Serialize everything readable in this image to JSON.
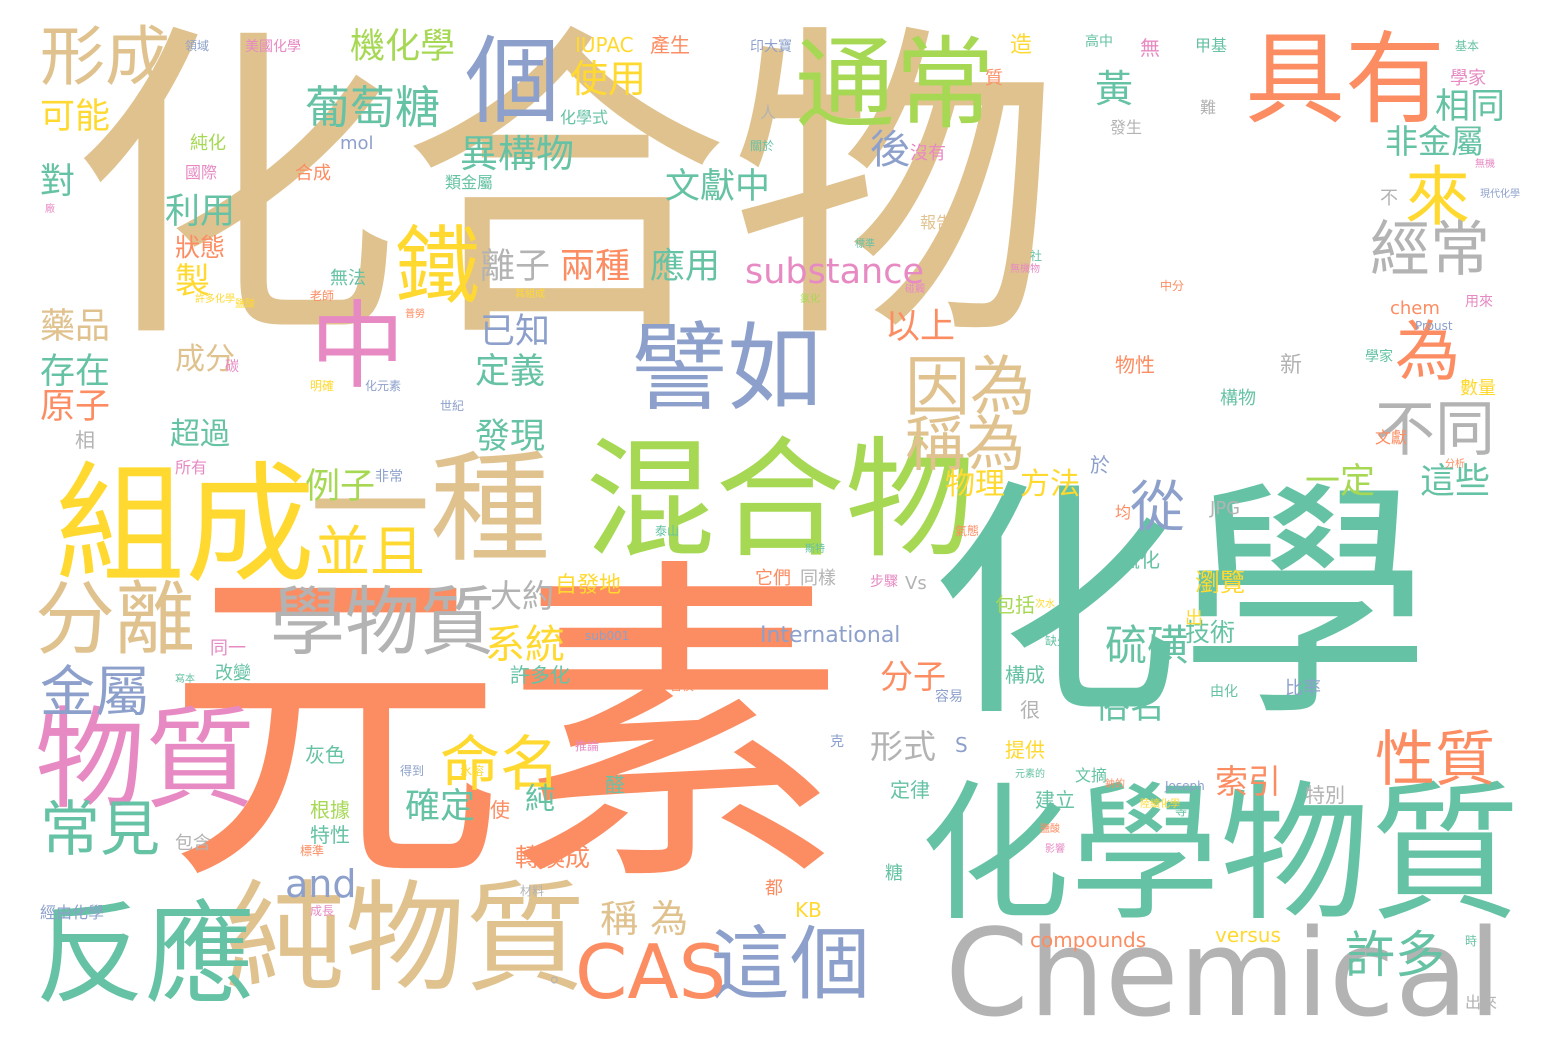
{
  "palette": {
    "tan": "#e0c28f",
    "teal": "#66c2a5",
    "orange": "#fc8d62",
    "blue": "#8da0cb",
    "pink": "#e78ac3",
    "green": "#a6d854",
    "yellow": "#ffd92f",
    "gray": "#b3b3b3"
  },
  "words": [
    {
      "text": "化合物",
      "color": "tan"
    },
    {
      "text": "元素",
      "color": "orange"
    },
    {
      "text": "化學",
      "color": "teal"
    },
    {
      "text": "化學物質",
      "color": "teal"
    },
    {
      "text": "混合物",
      "color": "green"
    },
    {
      "text": "組成",
      "color": "yellow"
    },
    {
      "text": "一種",
      "color": "tan"
    },
    {
      "text": "純物質",
      "color": "tan"
    },
    {
      "text": "Chemical",
      "color": "gray"
    },
    {
      "text": "反應",
      "color": "teal"
    },
    {
      "text": "物質",
      "color": "pink"
    },
    {
      "text": "具有",
      "color": "orange"
    },
    {
      "text": "通常",
      "color": "green"
    },
    {
      "text": "譬如",
      "color": "blue"
    },
    {
      "text": "個",
      "color": "blue"
    },
    {
      "text": "中",
      "color": "pink"
    },
    {
      "text": "鐵",
      "color": "yellow"
    },
    {
      "text": "學物質",
      "color": "gray"
    },
    {
      "text": "這個",
      "color": "blue"
    },
    {
      "text": "分離",
      "color": "tan"
    },
    {
      "text": "CAS",
      "color": "orange"
    },
    {
      "text": "形成",
      "color": "tan"
    },
    {
      "text": "因為",
      "color": "tan"
    },
    {
      "text": "經常",
      "color": "gray"
    },
    {
      "text": "不同",
      "color": "gray"
    },
    {
      "text": "常見",
      "color": "teal"
    },
    {
      "text": "命名",
      "color": "yellow"
    },
    {
      "text": "性質",
      "color": "orange"
    },
    {
      "text": "金屬",
      "color": "blue"
    },
    {
      "text": "並且",
      "color": "yellow"
    },
    {
      "text": "稱為",
      "color": "tan"
    },
    {
      "text": "來",
      "color": "yellow"
    },
    {
      "text": "為",
      "color": "orange"
    },
    {
      "text": "從",
      "color": "blue"
    },
    {
      "text": "許多",
      "color": "teal"
    },
    {
      "text": "葡萄糖",
      "color": "teal"
    },
    {
      "text": "機化學",
      "color": "green"
    },
    {
      "text": "substance",
      "color": "pink"
    },
    {
      "text": "系統",
      "color": "yellow"
    },
    {
      "text": "硫磺",
      "color": "teal"
    },
    {
      "text": "使用",
      "color": "yellow"
    },
    {
      "text": "異構物",
      "color": "teal"
    },
    {
      "text": "文獻中",
      "color": "teal"
    },
    {
      "text": "兩種",
      "color": "orange"
    },
    {
      "text": "應用",
      "color": "teal"
    },
    {
      "text": "離子",
      "color": "gray"
    },
    {
      "text": "利用",
      "color": "teal"
    },
    {
      "text": "已知",
      "color": "blue"
    },
    {
      "text": "定義",
      "color": "teal"
    },
    {
      "text": "以上",
      "color": "orange"
    },
    {
      "text": "後",
      "color": "blue"
    },
    {
      "text": "存在",
      "color": "teal"
    },
    {
      "text": "原子",
      "color": "orange"
    },
    {
      "text": "藥品",
      "color": "tan"
    },
    {
      "text": "可能",
      "color": "yellow"
    },
    {
      "text": "對",
      "color": "teal"
    },
    {
      "text": "製",
      "color": "yellow"
    },
    {
      "text": "狀態",
      "color": "orange"
    },
    {
      "text": "黃",
      "color": "teal"
    },
    {
      "text": "非金屬",
      "color": "teal"
    },
    {
      "text": "相同",
      "color": "teal"
    },
    {
      "text": "這些",
      "color": "teal"
    },
    {
      "text": "一定",
      "color": "green"
    },
    {
      "text": "索引",
      "color": "orange"
    },
    {
      "text": "形式",
      "color": "gray"
    },
    {
      "text": "分子",
      "color": "orange"
    },
    {
      "text": "and",
      "color": "blue"
    },
    {
      "text": "稱 為",
      "color": "tan"
    },
    {
      "text": "例子",
      "color": "green"
    },
    {
      "text": "發現",
      "color": "teal"
    },
    {
      "text": "超過",
      "color": "teal"
    },
    {
      "text": "成分",
      "color": "tan"
    },
    {
      "text": "俗名",
      "color": "teal"
    },
    {
      "text": "大約",
      "color": "gray"
    },
    {
      "text": "物理",
      "color": "yellow"
    },
    {
      "text": "方法",
      "color": "yellow"
    },
    {
      "text": "技術",
      "color": "teal"
    },
    {
      "text": "瀏覽",
      "color": "yellow"
    },
    {
      "text": "確定",
      "color": "teal"
    },
    {
      "text": "轉換成",
      "color": "orange"
    },
    {
      "text": "純",
      "color": "teal"
    },
    {
      "text": "International",
      "color": "blue"
    },
    {
      "text": "compounds",
      "color": "orange"
    },
    {
      "text": "versus",
      "color": "yellow"
    },
    {
      "text": "IUPAC",
      "color": "yellow"
    },
    {
      "text": "chem",
      "color": "orange"
    },
    {
      "text": "JPG",
      "color": "gray"
    },
    {
      "text": "mol",
      "color": "blue"
    },
    {
      "text": "Proust",
      "color": "blue"
    },
    {
      "text": "Joseph",
      "color": "blue"
    },
    {
      "text": "KB",
      "color": "yellow"
    },
    {
      "text": "sub001",
      "color": "blue"
    },
    {
      "text": "Vs",
      "color": "gray"
    },
    {
      "text": "S",
      "color": "blue"
    },
    {
      "text": "美國化學",
      "color": "pink"
    },
    {
      "text": "領域",
      "color": "blue"
    },
    {
      "text": "產生",
      "color": "orange"
    },
    {
      "text": "印大寶",
      "color": "blue"
    },
    {
      "text": "造",
      "color": "yellow"
    },
    {
      "text": "高中",
      "color": "teal"
    },
    {
      "text": "無",
      "color": "pink"
    },
    {
      "text": "甲基",
      "color": "teal"
    },
    {
      "text": "基本",
      "color": "teal"
    },
    {
      "text": "學家",
      "color": "pink"
    },
    {
      "text": "質",
      "color": "orange"
    },
    {
      "text": "人",
      "color": "gray"
    },
    {
      "text": "化學式",
      "color": "teal"
    },
    {
      "text": "純化",
      "color": "green"
    },
    {
      "text": "國際",
      "color": "pink"
    },
    {
      "text": "合成",
      "color": "orange"
    },
    {
      "text": "類金屬",
      "color": "teal"
    },
    {
      "text": "沒有",
      "color": "pink"
    },
    {
      "text": "難",
      "color": "gray"
    },
    {
      "text": "發生",
      "color": "gray"
    },
    {
      "text": "數量",
      "color": "yellow"
    },
    {
      "text": "新",
      "color": "gray"
    },
    {
      "text": "物性",
      "color": "orange"
    },
    {
      "text": "構物",
      "color": "teal"
    },
    {
      "text": "文獻",
      "color": "orange"
    },
    {
      "text": "學家",
      "color": "teal"
    },
    {
      "text": "報告",
      "color": "tan"
    },
    {
      "text": "色",
      "color": "tan"
    },
    {
      "text": "無法",
      "color": "teal"
    },
    {
      "text": "相",
      "color": "gray"
    },
    {
      "text": "所有",
      "color": "pink"
    },
    {
      "text": "非常",
      "color": "blue"
    },
    {
      "text": "碳",
      "color": "pink"
    },
    {
      "text": "明確",
      "color": "yellow"
    },
    {
      "text": "化元素",
      "color": "blue"
    },
    {
      "text": "世紀",
      "color": "blue"
    },
    {
      "text": "於",
      "color": "blue"
    },
    {
      "text": "均",
      "color": "orange"
    },
    {
      "text": "硫化",
      "color": "teal"
    },
    {
      "text": "包括",
      "color": "green"
    },
    {
      "text": "自發地",
      "color": "yellow"
    },
    {
      "text": "它們",
      "color": "orange"
    },
    {
      "text": "同樣",
      "color": "gray"
    },
    {
      "text": "步驟",
      "color": "pink"
    },
    {
      "text": "同一",
      "color": "pink"
    },
    {
      "text": "改變",
      "color": "teal"
    },
    {
      "text": "許多化",
      "color": "teal"
    },
    {
      "text": "很",
      "color": "gray"
    },
    {
      "text": "構成",
      "color": "teal"
    },
    {
      "text": "由化",
      "color": "teal"
    },
    {
      "text": "比率",
      "color": "blue"
    },
    {
      "text": "灰色",
      "color": "teal"
    },
    {
      "text": "根據",
      "color": "green"
    },
    {
      "text": "特性",
      "color": "teal"
    },
    {
      "text": "包含",
      "color": "gray"
    },
    {
      "text": "克",
      "color": "blue"
    },
    {
      "text": "定律",
      "color": "teal"
    },
    {
      "text": "提供",
      "color": "yellow"
    },
    {
      "text": "建立",
      "color": "teal"
    },
    {
      "text": "特別",
      "color": "gray"
    },
    {
      "text": "文摘",
      "color": "teal"
    },
    {
      "text": "醛",
      "color": "teal"
    },
    {
      "text": "使",
      "color": "orange"
    },
    {
      "text": "都",
      "color": "orange"
    },
    {
      "text": "出來",
      "color": "gray"
    },
    {
      "text": "經由化學",
      "color": "blue"
    },
    {
      "text": "材料",
      "color": "gray"
    },
    {
      "text": "成長",
      "color": "pink"
    },
    {
      "text": "容易",
      "color": "blue"
    },
    {
      "text": "出",
      "color": "yellow"
    },
    {
      "text": "不",
      "color": "gray"
    },
    {
      "text": "糖",
      "color": "teal"
    },
    {
      "text": "社",
      "color": "teal"
    },
    {
      "text": "老師",
      "color": "orange"
    },
    {
      "text": "用來",
      "color": "pink"
    },
    {
      "text": "時",
      "color": "teal"
    },
    {
      "text": "中分",
      "color": "orange"
    },
    {
      "text": "關於",
      "color": "teal"
    },
    {
      "text": "廠",
      "color": "pink"
    },
    {
      "text": "無機",
      "color": "pink"
    },
    {
      "text": "現代化學",
      "color": "blue"
    },
    {
      "text": "標準",
      "color": "teal"
    },
    {
      "text": "分析",
      "color": "orange"
    },
    {
      "text": "斯特",
      "color": "teal"
    },
    {
      "text": "氣態",
      "color": "orange"
    },
    {
      "text": "泰山",
      "color": "teal"
    },
    {
      "text": "習慣",
      "color": "orange"
    },
    {
      "text": "次水",
      "color": "yellow"
    },
    {
      "text": "推論",
      "color": "pink"
    },
    {
      "text": "水溶",
      "color": "yellow"
    },
    {
      "text": "得到",
      "color": "blue"
    },
    {
      "text": "標準",
      "color": "orange"
    },
    {
      "text": "等",
      "color": "teal"
    },
    {
      "text": "陸續化學",
      "color": "yellow"
    },
    {
      "text": "許多化學",
      "color": "yellow"
    },
    {
      "text": "其組成",
      "color": "yellow"
    },
    {
      "text": "普勞",
      "color": "orange"
    },
    {
      "text": "碰觸",
      "color": "pink"
    },
    {
      "text": "無機物",
      "color": "pink"
    },
    {
      "text": "氯化",
      "color": "green"
    },
    {
      "text": "鹽酸",
      "color": "yellow"
    },
    {
      "text": "缺少",
      "color": "teal"
    },
    {
      "text": "影響",
      "color": "pink"
    },
    {
      "text": "寫本",
      "color": "teal"
    },
    {
      "text": "鈉的",
      "color": "orange"
    },
    {
      "text": "元素的",
      "color": "teal"
    },
    {
      "text": "鹽酸",
      "color": "orange"
    },
    {
      "text": "。",
      "color": "gray"
    }
  ]
}
